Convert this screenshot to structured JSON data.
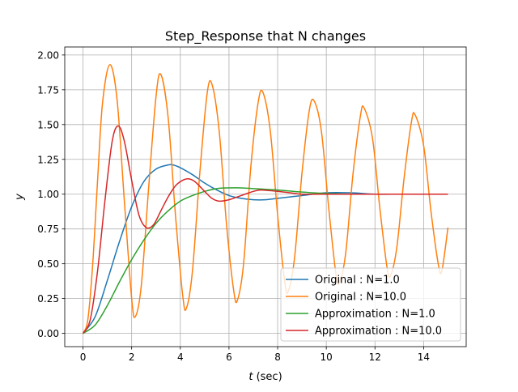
{
  "chart_data": {
    "type": "line",
    "title": "Step_Response that N changes",
    "xlabel": "t (sec)",
    "xlabel_italic": "t",
    "xlabel_unit": " (sec)",
    "ylabel": "y",
    "xlim": [
      -0.75,
      15.75
    ],
    "ylim": [
      -0.0955,
      2.0575
    ],
    "x_ticks": [
      0,
      2,
      4,
      6,
      8,
      10,
      12,
      14
    ],
    "x_tick_labels": [
      "0",
      "2",
      "4",
      "6",
      "8",
      "10",
      "12",
      "14"
    ],
    "y_ticks": [
      0.0,
      0.25,
      0.5,
      0.75,
      1.0,
      1.25,
      1.5,
      1.75,
      2.0
    ],
    "y_tick_labels": [
      "0.00",
      "0.25",
      "0.50",
      "0.75",
      "1.00",
      "1.25",
      "1.50",
      "1.75",
      "2.00"
    ],
    "grid": true,
    "legend_position": "lower right",
    "series": [
      {
        "name": "Original : N=1.0",
        "color": "#1f77b4",
        "x": [
          0,
          0.5,
          1.0,
          1.5,
          2.0,
          2.5,
          3.0,
          3.5,
          3.7,
          4.0,
          4.5,
          5.0,
          5.5,
          6.0,
          6.5,
          7.0,
          7.5,
          8.0,
          9.0,
          10.0,
          11.0,
          12.0,
          13.0,
          14.0,
          15.0
        ],
        "y": [
          0,
          0.12,
          0.38,
          0.66,
          0.91,
          1.09,
          1.18,
          1.21,
          1.21,
          1.19,
          1.14,
          1.08,
          1.03,
          0.99,
          0.97,
          0.96,
          0.96,
          0.97,
          0.99,
          1.01,
          1.01,
          1.0,
          1.0,
          1.0,
          1.0
        ]
      },
      {
        "name": "Original : N=10.0",
        "color": "#ff7f0e",
        "x": [
          0,
          0.2,
          0.4,
          0.6,
          0.8,
          1.1,
          1.4,
          1.7,
          2.0,
          2.15,
          2.4,
          2.7,
          3.0,
          3.2,
          3.5,
          3.8,
          4.1,
          4.25,
          4.5,
          4.8,
          5.1,
          5.3,
          5.6,
          5.9,
          6.2,
          6.35,
          6.6,
          6.9,
          7.2,
          7.4,
          7.7,
          8.0,
          8.3,
          8.45,
          8.7,
          9.0,
          9.3,
          9.5,
          9.8,
          10.1,
          10.4,
          10.55,
          10.8,
          11.1,
          11.4,
          11.55,
          11.9,
          12.2,
          12.5,
          12.65,
          12.9,
          13.2,
          13.5,
          13.65,
          14.0,
          14.3,
          14.6,
          14.75,
          15.0
        ],
        "y": [
          0,
          0.1,
          0.5,
          1.1,
          1.65,
          1.93,
          1.68,
          0.95,
          0.25,
          0.12,
          0.35,
          1.05,
          1.7,
          1.86,
          1.55,
          0.85,
          0.27,
          0.18,
          0.45,
          1.15,
          1.72,
          1.79,
          1.45,
          0.78,
          0.3,
          0.24,
          0.5,
          1.2,
          1.66,
          1.73,
          1.45,
          0.85,
          0.36,
          0.31,
          0.55,
          1.15,
          1.6,
          1.67,
          1.45,
          0.9,
          0.42,
          0.37,
          0.58,
          1.15,
          1.56,
          1.62,
          1.4,
          0.9,
          0.47,
          0.42,
          0.62,
          1.12,
          1.52,
          1.57,
          1.35,
          0.88,
          0.5,
          0.45,
          0.76
        ]
      },
      {
        "name": "Approximation : N=1.0",
        "color": "#2ca02c",
        "x": [
          0,
          0.5,
          1.0,
          1.5,
          2.0,
          2.5,
          3.0,
          3.5,
          4.0,
          4.5,
          5.0,
          5.5,
          6.0,
          6.5,
          7.0,
          7.5,
          8.0,
          9.0,
          10.0,
          11.0,
          12.0,
          13.0,
          14.0,
          15.0
        ],
        "y": [
          0,
          0.06,
          0.2,
          0.37,
          0.53,
          0.67,
          0.79,
          0.88,
          0.95,
          0.99,
          1.02,
          1.04,
          1.045,
          1.045,
          1.04,
          1.035,
          1.03,
          1.015,
          1.005,
          1.0,
          1.0,
          1.0,
          1.0,
          1.0
        ]
      },
      {
        "name": "Approximation : N=10.0",
        "color": "#d62728",
        "x": [
          0,
          0.3,
          0.6,
          0.9,
          1.2,
          1.45,
          1.7,
          2.0,
          2.3,
          2.6,
          2.9,
          3.2,
          3.5,
          3.8,
          4.1,
          4.35,
          4.6,
          5.0,
          5.3,
          5.6,
          6.0,
          6.5,
          7.0,
          7.3,
          7.7,
          8.0,
          8.5,
          9.0,
          10.0,
          11.0,
          12.0,
          13.0,
          14.0,
          15.0
        ],
        "y": [
          0,
          0.1,
          0.45,
          0.95,
          1.38,
          1.49,
          1.38,
          1.1,
          0.85,
          0.76,
          0.78,
          0.88,
          0.98,
          1.06,
          1.1,
          1.11,
          1.09,
          1.02,
          0.97,
          0.95,
          0.96,
          0.99,
          1.02,
          1.03,
          1.025,
          1.02,
          1.01,
          1.0,
          1.0,
          1.0,
          1.0,
          1.0,
          1.0,
          1.0
        ]
      }
    ]
  }
}
